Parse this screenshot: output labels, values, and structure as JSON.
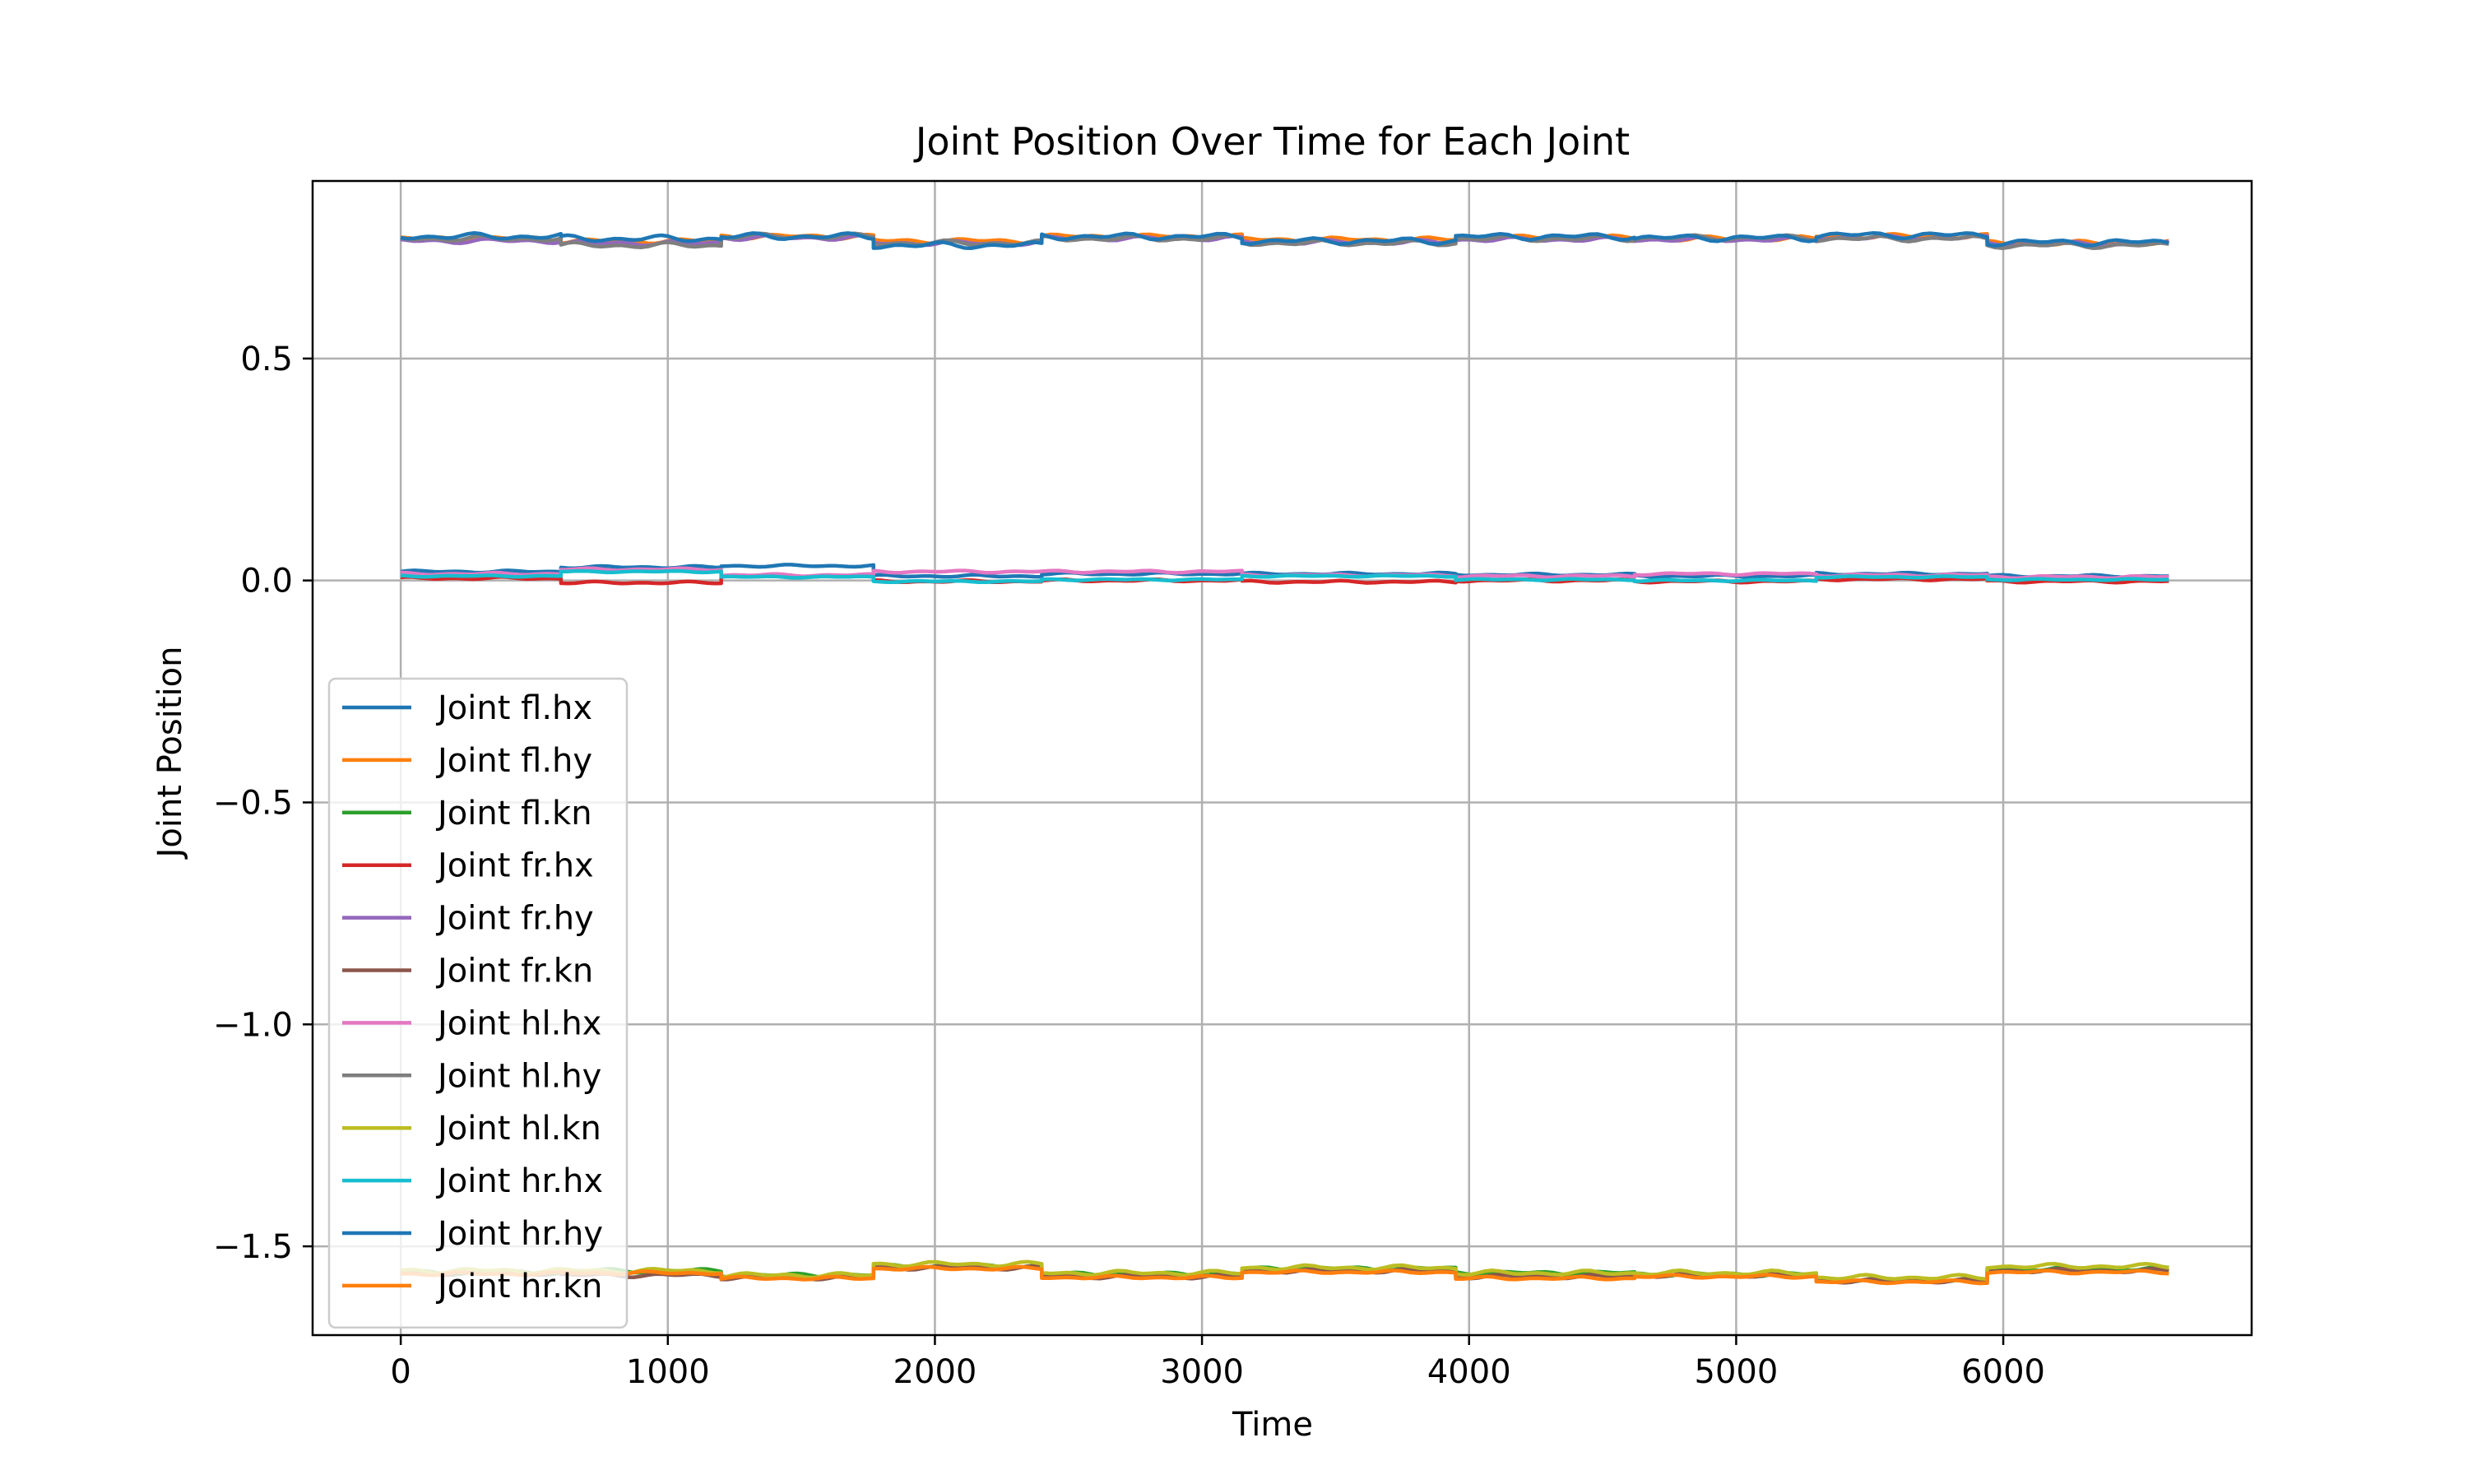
{
  "chart_data": {
    "type": "line",
    "title": "Joint Position Over Time for Each Joint",
    "xlabel": "Time",
    "ylabel": "Joint Position",
    "xlim": [
      -330,
      6930
    ],
    "ylim": [
      -1.7,
      0.9
    ],
    "xticks": [
      0,
      1000,
      2000,
      3000,
      4000,
      5000,
      6000
    ],
    "xtick_labels": [
      "0",
      "1000",
      "2000",
      "3000",
      "4000",
      "5000",
      "6000"
    ],
    "yticks": [
      0.5,
      0.0,
      -0.5,
      -1.0,
      -1.5
    ],
    "ytick_labels": [
      "0.5",
      "0.0",
      "−0.5",
      "−1.0",
      "−1.5"
    ],
    "grid": true,
    "legend_position": "lower-left",
    "segment_boundaries": [
      0,
      600,
      1200,
      1770,
      2400,
      3150,
      3950,
      4620,
      5300,
      5940,
      6620
    ],
    "series": [
      {
        "name": "Joint fl.hx",
        "color": "#1f77b4",
        "segment_levels": [
          0.02,
          0.03,
          0.033,
          0.01,
          0.015,
          0.015,
          0.013,
          0.01,
          0.015,
          0.01
        ],
        "wiggle": 0.003
      },
      {
        "name": "Joint fl.hy",
        "color": "#ff7f0e",
        "segment_levels": [
          0.77,
          0.765,
          0.775,
          0.765,
          0.775,
          0.768,
          0.772,
          0.77,
          0.775,
          0.76
        ],
        "wiggle": 0.006
      },
      {
        "name": "Joint fl.kn",
        "color": "#2ca02c",
        "segment_levels": [
          -1.56,
          -1.555,
          -1.565,
          -1.545,
          -1.562,
          -1.55,
          -1.56,
          -1.563,
          -1.575,
          -1.55
        ],
        "wiggle": 0.005
      },
      {
        "name": "Joint fr.hx",
        "color": "#d62728",
        "segment_levels": [
          0.005,
          -0.005,
          0.01,
          -0.002,
          0.0,
          -0.003,
          0.0,
          -0.002,
          0.003,
          -0.002
        ],
        "wiggle": 0.003
      },
      {
        "name": "Joint fr.hy",
        "color": "#9467bd",
        "segment_levels": [
          0.765,
          0.76,
          0.772,
          0.76,
          0.77,
          0.762,
          0.768,
          0.768,
          0.772,
          0.758
        ],
        "wiggle": 0.006
      },
      {
        "name": "Joint fr.kn",
        "color": "#8c564b",
        "segment_levels": [
          -1.56,
          -1.565,
          -1.57,
          -1.548,
          -1.568,
          -1.555,
          -1.568,
          -1.565,
          -1.578,
          -1.555
        ],
        "wiggle": 0.005
      },
      {
        "name": "Joint hl.hx",
        "color": "#e377c2",
        "segment_levels": [
          0.015,
          0.025,
          0.012,
          0.02,
          0.02,
          0.012,
          0.01,
          0.015,
          0.012,
          0.008
        ],
        "wiggle": 0.003
      },
      {
        "name": "Joint hl.hy",
        "color": "#7f7f7f",
        "segment_levels": [
          0.77,
          0.755,
          0.775,
          0.76,
          0.77,
          0.76,
          0.77,
          0.772,
          0.77,
          0.755
        ],
        "wiggle": 0.007
      },
      {
        "name": "Joint hl.kn",
        "color": "#bcbd22",
        "segment_levels": [
          -1.555,
          -1.555,
          -1.565,
          -1.54,
          -1.56,
          -1.548,
          -1.56,
          -1.56,
          -1.57,
          -1.545
        ],
        "wiggle": 0.006
      },
      {
        "name": "Joint hr.hx",
        "color": "#17becf",
        "segment_levels": [
          0.01,
          0.02,
          0.008,
          -0.002,
          0.002,
          0.01,
          0.002,
          0.0,
          0.008,
          0.002
        ],
        "wiggle": 0.002
      },
      {
        "name": "Joint hr.hy",
        "color": "#1f77b4",
        "segment_levels": [
          0.775,
          0.77,
          0.775,
          0.755,
          0.775,
          0.765,
          0.775,
          0.772,
          0.778,
          0.762
        ],
        "wiggle": 0.008
      },
      {
        "name": "Joint hr.kn",
        "color": "#ff7f0e",
        "segment_levels": [
          -1.562,
          -1.56,
          -1.572,
          -1.55,
          -1.57,
          -1.558,
          -1.572,
          -1.568,
          -1.58,
          -1.558
        ],
        "wiggle": 0.004
      }
    ]
  }
}
